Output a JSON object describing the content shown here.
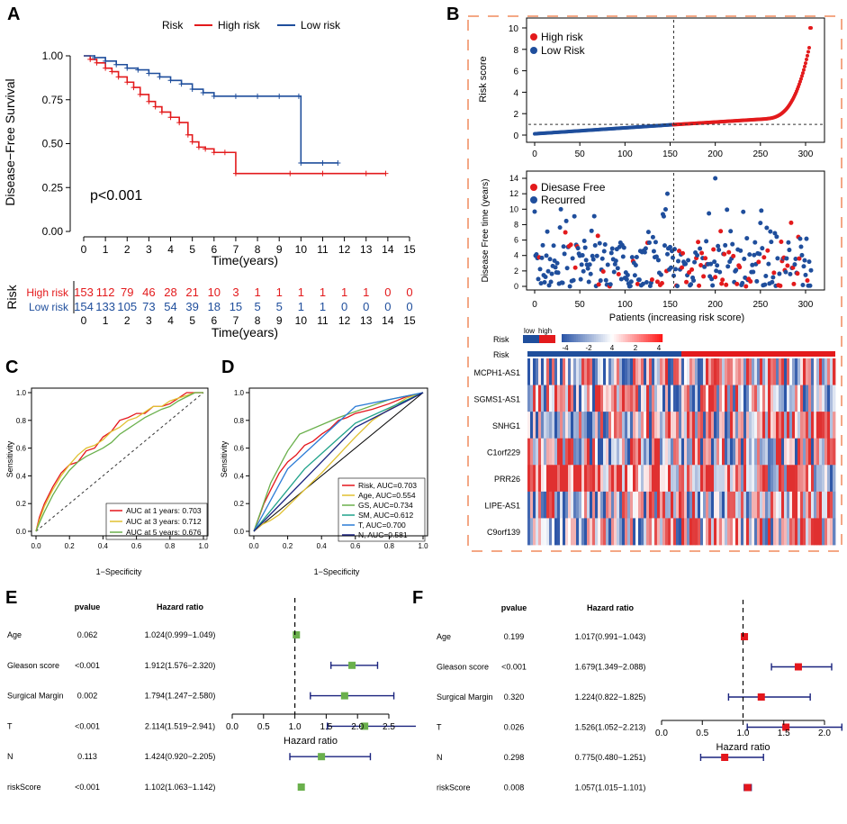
{
  "colors": {
    "high": "#e31a1c",
    "low": "#1f4e9c",
    "green": "#6ab04c",
    "yellow": "#e0c030",
    "teal": "#1fa28a",
    "blue": "#2b7bd6",
    "navy": "#1a237e",
    "orange": "#e8803a",
    "red": "#e4161c",
    "heatRed": "#e03030",
    "heatBlue": "#2c56a8"
  },
  "panel_labels": {
    "a": "A",
    "b": "B",
    "c": "C",
    "d": "D",
    "e": "E",
    "f": "F"
  },
  "chart_data": [
    {
      "id": "A",
      "type": "line",
      "legend_title": "Risk",
      "legend": [
        "High risk",
        "Low risk"
      ],
      "ylabel": "Disease−Free Survival",
      "xlabel": "Time(years)",
      "yticks": [
        "0.00",
        "0.25",
        "0.50",
        "0.75",
        "1.00"
      ],
      "xticks": [
        "0",
        "1",
        "2",
        "3",
        "4",
        "5",
        "6",
        "7",
        "8",
        "9",
        "10",
        "11",
        "12",
        "13",
        "14",
        "15"
      ],
      "pvalue": "p<0.001",
      "series": [
        {
          "name": "High risk",
          "x": [
            0,
            0.3,
            0.6,
            1,
            1.3,
            1.6,
            2,
            2.3,
            2.6,
            3,
            3.3,
            3.6,
            4,
            4.4,
            4.8,
            5,
            5.3,
            5.6,
            6,
            6.5,
            7,
            9.5,
            11,
            13,
            13.9
          ],
          "y": [
            1,
            0.98,
            0.96,
            0.93,
            0.91,
            0.88,
            0.85,
            0.82,
            0.78,
            0.74,
            0.71,
            0.68,
            0.65,
            0.62,
            0.55,
            0.51,
            0.48,
            0.47,
            0.45,
            0.45,
            0.33,
            0.33,
            0.33,
            0.33,
            0.33
          ]
        },
        {
          "name": "Low risk",
          "x": [
            0,
            0.5,
            1,
            1.5,
            2,
            2.5,
            3,
            3.5,
            4,
            4.5,
            5,
            5.5,
            6,
            7,
            8,
            9,
            9.9,
            10,
            11,
            11.7
          ],
          "y": [
            1,
            0.99,
            0.97,
            0.95,
            0.93,
            0.92,
            0.9,
            0.88,
            0.86,
            0.84,
            0.81,
            0.79,
            0.77,
            0.77,
            0.77,
            0.77,
            0.77,
            0.39,
            0.39,
            0.39
          ]
        }
      ],
      "risk_table": {
        "title": "Risk",
        "xlabel": "Time(years)",
        "rows": [
          {
            "name": "High risk",
            "values": [
              "153",
              "112",
              "79",
              "46",
              "28",
              "21",
              "10",
              "3",
              "1",
              "1",
              "1",
              "1",
              "1",
              "1",
              "0",
              "0"
            ]
          },
          {
            "name": "Low risk",
            "values": [
              "154",
              "133",
              "105",
              "73",
              "54",
              "39",
              "18",
              "15",
              "5",
              "5",
              "1",
              "1",
              "0",
              "0",
              "0",
              "0"
            ]
          }
        ]
      }
    },
    {
      "id": "B1",
      "type": "scatter",
      "ylabel": "Risk score",
      "legend": [
        "High risk",
        "Low Risk"
      ],
      "yticks": [
        "0",
        "2",
        "4",
        "6",
        "8",
        "10"
      ],
      "xticks": [
        "0",
        "50",
        "100",
        "150",
        "200",
        "250",
        "300"
      ],
      "cutoff_x": 154,
      "cutoff_y": 1.0,
      "n": 307
    },
    {
      "id": "B2",
      "type": "scatter",
      "ylabel": "Disease Free time (years)",
      "xlabel": "Patients (increasing risk score)",
      "legend": [
        "Diesase Free",
        "Recurred"
      ],
      "yticks": [
        "0",
        "2",
        "4",
        "6",
        "8",
        "10",
        "12",
        "14"
      ],
      "xticks": [
        "0",
        "50",
        "100",
        "150",
        "200",
        "250",
        "300"
      ]
    },
    {
      "id": "B3",
      "type": "heatmap",
      "legend_groups": [
        "low",
        "high"
      ],
      "risk_label": "Risk",
      "scale_ticks": [
        "-4",
        "-2",
        "4",
        "2",
        "4"
      ],
      "genes": [
        "MCPH1-AS1",
        "SGMS1-AS1",
        "SNHG1",
        "C1orf229",
        "PRR26",
        "LIPE-AS1",
        "C9orf139"
      ]
    },
    {
      "id": "C",
      "type": "line",
      "xlabel": "1−Specificity",
      "ylabel": "Sensitivity",
      "ticks": [
        "0.0",
        "0.2",
        "0.4",
        "0.6",
        "0.8",
        "1.0"
      ],
      "series": [
        {
          "name": "AUC at 1 years: 0.703",
          "x": [
            0,
            0.02,
            0.05,
            0.1,
            0.15,
            0.2,
            0.25,
            0.3,
            0.35,
            0.4,
            0.45,
            0.5,
            0.55,
            0.6,
            0.65,
            0.7,
            0.75,
            0.8,
            0.85,
            0.9,
            0.95,
            1
          ],
          "y": [
            0,
            0.1,
            0.2,
            0.32,
            0.42,
            0.48,
            0.5,
            0.58,
            0.6,
            0.68,
            0.72,
            0.8,
            0.82,
            0.85,
            0.85,
            0.9,
            0.9,
            0.92,
            0.96,
            1,
            1,
            1
          ]
        },
        {
          "name": "AUC at 3 years: 0.712",
          "x": [
            0,
            0.02,
            0.05,
            0.1,
            0.15,
            0.2,
            0.25,
            0.3,
            0.35,
            0.4,
            0.45,
            0.5,
            0.55,
            0.6,
            0.65,
            0.7,
            0.75,
            0.8,
            0.85,
            0.9,
            0.95,
            1
          ],
          "y": [
            0,
            0.08,
            0.18,
            0.3,
            0.4,
            0.48,
            0.55,
            0.6,
            0.62,
            0.66,
            0.72,
            0.75,
            0.8,
            0.82,
            0.86,
            0.9,
            0.9,
            0.94,
            0.96,
            0.98,
            1,
            1
          ]
        },
        {
          "name": "AUC at 5 years: 0.676",
          "x": [
            0,
            0.02,
            0.05,
            0.1,
            0.15,
            0.2,
            0.25,
            0.3,
            0.35,
            0.4,
            0.45,
            0.5,
            0.55,
            0.6,
            0.65,
            0.7,
            0.75,
            0.8,
            0.85,
            0.9,
            0.95,
            1
          ],
          "y": [
            0,
            0.06,
            0.14,
            0.26,
            0.36,
            0.44,
            0.5,
            0.54,
            0.57,
            0.6,
            0.64,
            0.7,
            0.74,
            0.78,
            0.82,
            0.85,
            0.88,
            0.9,
            0.94,
            0.97,
            1,
            1
          ]
        }
      ]
    },
    {
      "id": "D",
      "type": "line",
      "xlabel": "1−Specificity",
      "ylabel": "Sensitivity",
      "ticks": [
        "0.0",
        "0.2",
        "0.4",
        "0.6",
        "0.8",
        "1.0"
      ],
      "series": [
        {
          "name": "Risk, AUC=0.703",
          "x": [
            0,
            0.03,
            0.06,
            0.1,
            0.15,
            0.2,
            0.25,
            0.3,
            0.35,
            0.4,
            0.45,
            0.5,
            0.55,
            0.6,
            0.7,
            0.8,
            0.9,
            1
          ],
          "y": [
            0,
            0.1,
            0.2,
            0.3,
            0.42,
            0.5,
            0.55,
            0.62,
            0.65,
            0.7,
            0.74,
            0.8,
            0.82,
            0.85,
            0.88,
            0.92,
            0.97,
            1
          ]
        },
        {
          "name": "Age, AUC=0.554",
          "x": [
            0,
            0.05,
            0.1,
            0.15,
            0.2,
            0.3,
            0.4,
            0.5,
            0.6,
            0.7,
            0.8,
            0.9,
            1
          ],
          "y": [
            0,
            0.05,
            0.08,
            0.12,
            0.18,
            0.3,
            0.42,
            0.55,
            0.68,
            0.8,
            0.88,
            0.96,
            1
          ]
        },
        {
          "name": "GS, AUC=0.734",
          "x": [
            0,
            0.1,
            0.2,
            0.27,
            0.5,
            0.8,
            1
          ],
          "y": [
            0,
            0.35,
            0.58,
            0.7,
            0.82,
            0.95,
            1
          ]
        },
        {
          "name": "SM, AUC=0.612",
          "x": [
            0,
            0.3,
            0.6,
            1
          ],
          "y": [
            0,
            0.45,
            0.78,
            1
          ]
        },
        {
          "name": "T, AUC=0.700",
          "x": [
            0,
            0.2,
            0.6,
            1
          ],
          "y": [
            0,
            0.45,
            0.9,
            1
          ]
        },
        {
          "name": "N, AUC=0.581",
          "x": [
            0,
            0.6,
            1
          ],
          "y": [
            0,
            0.75,
            1
          ]
        }
      ],
      "diagonal": true
    },
    {
      "id": "E",
      "type": "forest",
      "xlabel": "Hazard ratio",
      "col_headers": [
        "pvalue",
        "Hazard ratio"
      ],
      "xticks": [
        "0.0",
        "0.5",
        "1.0",
        "1.5",
        "2.0",
        "2.5"
      ],
      "rows": [
        {
          "label": "Age",
          "pvalue": "0.062",
          "text": "1.024(0.999−1.049)",
          "hr": 1.024,
          "lo": 0.999,
          "hi": 1.049
        },
        {
          "label": "Gleason score",
          "pvalue": "<0.001",
          "text": "1.912(1.576−2.320)",
          "hr": 1.912,
          "lo": 1.576,
          "hi": 2.32
        },
        {
          "label": "Surgical Margin",
          "pvalue": "0.002",
          "text": "1.794(1.247−2.580)",
          "hr": 1.794,
          "lo": 1.247,
          "hi": 2.58
        },
        {
          "label": "T",
          "pvalue": "<0.001",
          "text": "2.114(1.519−2.941)",
          "hr": 2.114,
          "lo": 1.519,
          "hi": 2.941
        },
        {
          "label": "N",
          "pvalue": "0.113",
          "text": "1.424(0.920−2.205)",
          "hr": 1.424,
          "lo": 0.92,
          "hi": 2.205
        },
        {
          "label": "riskScore",
          "pvalue": "<0.001",
          "text": "1.102(1.063−1.142)",
          "hr": 1.102,
          "lo": 1.063,
          "hi": 1.142
        }
      ]
    },
    {
      "id": "F",
      "type": "forest",
      "xlabel": "Hazard ratio",
      "col_headers": [
        "pvalue",
        "Hazard ratio"
      ],
      "xticks": [
        "0.0",
        "0.5",
        "1.0",
        "1.5",
        "2.0"
      ],
      "rows": [
        {
          "label": "Age",
          "pvalue": "0.199",
          "text": "1.017(0.991−1.043)",
          "hr": 1.017,
          "lo": 0.991,
          "hi": 1.043
        },
        {
          "label": "Gleason score",
          "pvalue": "<0.001",
          "text": "1.679(1.349−2.088)",
          "hr": 1.679,
          "lo": 1.349,
          "hi": 2.088
        },
        {
          "label": "Surgical Margin",
          "pvalue": "0.320",
          "text": "1.224(0.822−1.825)",
          "hr": 1.224,
          "lo": 0.822,
          "hi": 1.825
        },
        {
          "label": "T",
          "pvalue": "0.026",
          "text": "1.526(1.052−2.213)",
          "hr": 1.526,
          "lo": 1.052,
          "hi": 2.213
        },
        {
          "label": "N",
          "pvalue": "0.298",
          "text": "0.775(0.480−1.251)",
          "hr": 0.775,
          "lo": 0.48,
          "hi": 1.251
        },
        {
          "label": "riskScore",
          "pvalue": "0.008",
          "text": "1.057(1.015−1.101)",
          "hr": 1.057,
          "lo": 1.015,
          "hi": 1.101
        }
      ]
    }
  ]
}
